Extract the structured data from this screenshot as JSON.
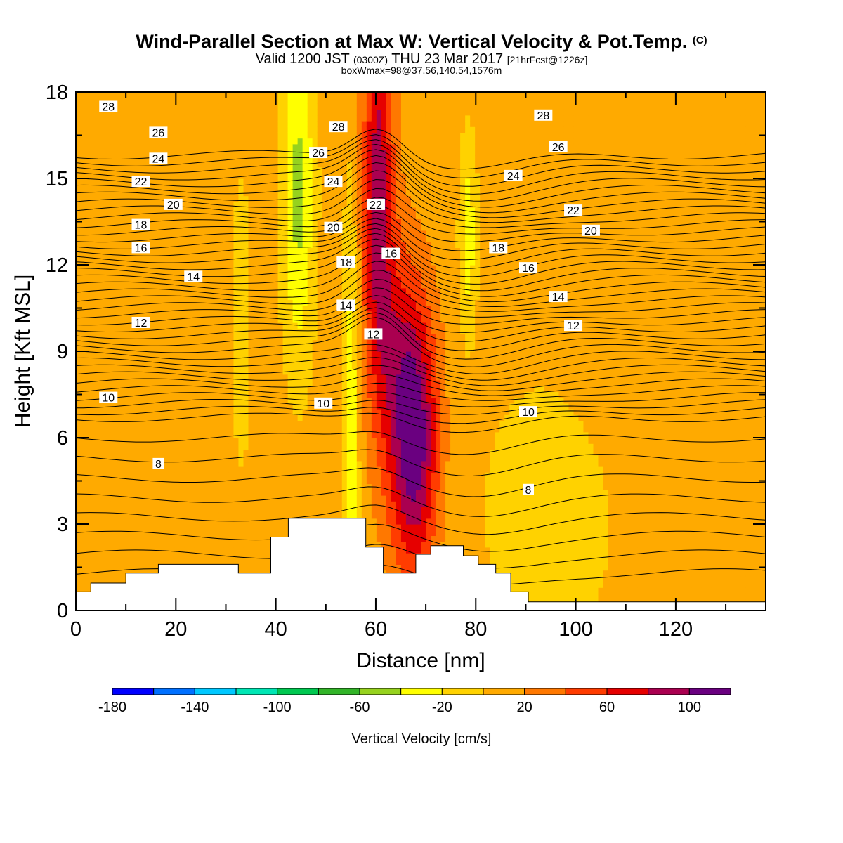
{
  "header": {
    "title": "Wind-Parallel Section at Max W: Vertical Velocity & Pot.Temp.",
    "copyright": "(C)",
    "valid_a": "Valid 1200 JST",
    "valid_b": "(0300Z)",
    "valid_c": "THU 23 Mar 2017",
    "valid_d": "[21hrFcst@1226z]",
    "box": "boxWmax=98@37.56,140.54,1576m"
  },
  "chart_data": {
    "type": "heatmap",
    "xlabel": "Distance [nm]",
    "ylabel": "Height [Kft MSL]",
    "xlim": [
      0,
      138
    ],
    "ylim": [
      0,
      18
    ],
    "xticks": [
      0,
      20,
      40,
      60,
      80,
      100,
      120
    ],
    "yticks": [
      0,
      3,
      6,
      9,
      12,
      15,
      18
    ],
    "colorbar": {
      "label": "Vertical Velocity [cm/s]",
      "bounds": [
        -180,
        -160,
        -140,
        -120,
        -100,
        -80,
        -60,
        -40,
        -20,
        0,
        20,
        40,
        60,
        80,
        100,
        120
      ],
      "tick_labels": [
        "-180",
        "-140",
        "-100",
        "-60",
        "-20",
        "20",
        "60",
        "100"
      ],
      "colors": [
        "#0000ff",
        "#0070ff",
        "#00c8ff",
        "#00e6b4",
        "#00c850",
        "#32b428",
        "#96d21e",
        "#ffff00",
        "#ffd200",
        "#ffaa00",
        "#ff7800",
        "#ff3c00",
        "#e60000",
        "#aa0050",
        "#6a0080"
      ]
    },
    "theta_contour_labels": [
      {
        "value": "28",
        "x": 6.5,
        "y": 17.5
      },
      {
        "value": "26",
        "x": 16.5,
        "y": 16.6
      },
      {
        "value": "24",
        "x": 16.5,
        "y": 15.7
      },
      {
        "value": "22",
        "x": 13,
        "y": 14.9
      },
      {
        "value": "20",
        "x": 19.5,
        "y": 14.1
      },
      {
        "value": "18",
        "x": 13,
        "y": 13.4
      },
      {
        "value": "16",
        "x": 13,
        "y": 12.6
      },
      {
        "value": "14",
        "x": 23.5,
        "y": 11.6
      },
      {
        "value": "12",
        "x": 13,
        "y": 10
      },
      {
        "value": "10",
        "x": 6.5,
        "y": 7.4
      },
      {
        "value": "8",
        "x": 16.5,
        "y": 5.1
      },
      {
        "value": "28",
        "x": 52.5,
        "y": 16.8
      },
      {
        "value": "26",
        "x": 48.5,
        "y": 15.9
      },
      {
        "value": "24",
        "x": 51.5,
        "y": 14.9
      },
      {
        "value": "22",
        "x": 60,
        "y": 14.1
      },
      {
        "value": "20",
        "x": 51.5,
        "y": 13.3
      },
      {
        "value": "18",
        "x": 54,
        "y": 12.1
      },
      {
        "value": "16",
        "x": 63,
        "y": 12.4
      },
      {
        "value": "14",
        "x": 54,
        "y": 10.6
      },
      {
        "value": "12",
        "x": 59.5,
        "y": 9.6
      },
      {
        "value": "10",
        "x": 49.5,
        "y": 7.2
      },
      {
        "value": "28",
        "x": 93.5,
        "y": 17.2
      },
      {
        "value": "26",
        "x": 96.5,
        "y": 16.1
      },
      {
        "value": "24",
        "x": 87.5,
        "y": 15.1
      },
      {
        "value": "22",
        "x": 99.5,
        "y": 13.9
      },
      {
        "value": "20",
        "x": 103,
        "y": 13.2
      },
      {
        "value": "18",
        "x": 84.5,
        "y": 12.6
      },
      {
        "value": "16",
        "x": 90.5,
        "y": 11.9
      },
      {
        "value": "14",
        "x": 96.5,
        "y": 10.9
      },
      {
        "value": "12",
        "x": 99.5,
        "y": 9.9
      },
      {
        "value": "10",
        "x": 90.5,
        "y": 6.9
      },
      {
        "value": "8",
        "x": 90.5,
        "y": 4.2
      }
    ],
    "terrain": {
      "x": [
        0,
        3,
        3,
        10,
        10,
        16.5,
        16.5,
        32.5,
        32.5,
        39,
        39,
        42.5,
        42.5,
        58,
        58,
        61.5,
        61.5,
        68,
        68,
        71,
        71,
        77.5,
        77.5,
        80.5,
        80.5,
        84,
        84,
        87,
        87,
        90.5,
        90.5,
        93.5,
        93.5,
        138
      ],
      "y": [
        0.65,
        0.65,
        0.95,
        0.95,
        1.3,
        1.3,
        1.6,
        1.6,
        1.3,
        1.3,
        2.55,
        2.55,
        3.2,
        3.2,
        2.2,
        2.2,
        1.3,
        1.3,
        1.95,
        1.95,
        2.25,
        2.25,
        1.9,
        1.9,
        1.6,
        1.6,
        1.3,
        1.3,
        0.65,
        0.65,
        0.3,
        0.3,
        0.3,
        0.3
      ]
    }
  }
}
